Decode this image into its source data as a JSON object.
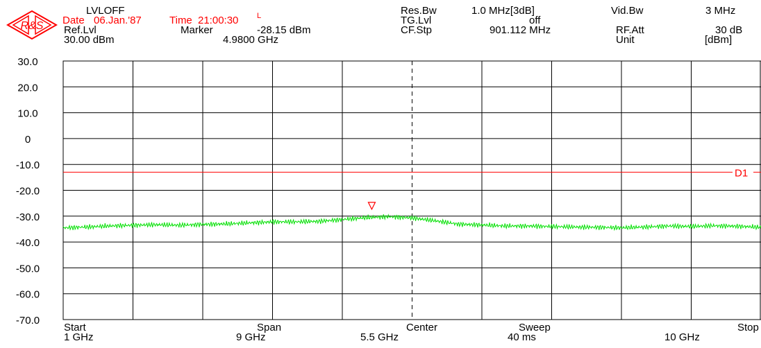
{
  "header": {
    "title": "LVLOFF",
    "date_label": "Date",
    "date_value": "06.Jan.'87",
    "time_label": "Time",
    "time_value": "21:00:30",
    "time_flag": "L",
    "ref_lvl_label": "Ref.Lvl",
    "ref_lvl_value": "30.00 dBm",
    "marker_label": "Marker",
    "marker_level": "-28.15 dBm",
    "marker_freq": "4.9800 GHz",
    "res_bw_label": "Res.Bw",
    "res_bw_value": "1.0 MHz[3dB]",
    "tg_lvl_label": "TG.Lvl",
    "tg_lvl_value": "off",
    "cf_stp_label": "CF.Stp",
    "cf_stp_value": "901.112 MHz",
    "vid_bw_label": "Vid.Bw",
    "vid_bw_value": "3 MHz",
    "rf_att_label": "RF.Att",
    "rf_att_value": "30 dB",
    "unit_label": "Unit",
    "unit_value": "[dBm]"
  },
  "footer": {
    "start_label": "Start",
    "start_value": "1 GHz",
    "span_label": "Span",
    "span_value": "9 GHz",
    "center_label": "Center",
    "center_value": "5.5 GHz",
    "sweep_label": "Sweep",
    "sweep_value": "40 ms",
    "stop_label": "Stop",
    "stop_value": "10 GHz"
  },
  "colors": {
    "trace": "#00e000",
    "display_line": "#ff0000",
    "marker": "#ff0000",
    "grid": "#000000",
    "text": "#000000",
    "accent_text": "#ff0000"
  },
  "chart_data": {
    "type": "line",
    "title": "LVLOFF",
    "x_unit": "GHz",
    "xlim": [
      1,
      10
    ],
    "ylim": [
      -70,
      30
    ],
    "y_ticks": [
      30,
      20,
      10,
      0,
      -10,
      -20,
      -30,
      -40,
      -50,
      -60,
      -70
    ],
    "y_tick_labels": [
      "30.0",
      "20.0",
      "10.0",
      "0",
      "-10.0",
      "-20.0",
      "-30.0",
      "-40.0",
      "-50.0",
      "-60.0",
      "-70.0"
    ],
    "grid": true,
    "center_freq": 5.5,
    "series": [
      {
        "color": "#00e000",
        "x": [
          1.0,
          1.3,
          1.6,
          1.9,
          2.2,
          2.5,
          2.8,
          3.1,
          3.4,
          3.7,
          4.0,
          4.3,
          4.6,
          4.9,
          5.2,
          5.5,
          5.8,
          6.1,
          6.4,
          6.7,
          7.0,
          7.3,
          7.6,
          7.9,
          8.2,
          8.5,
          8.8,
          9.1,
          9.4,
          9.7,
          10.0
        ],
        "y": [
          -34.5,
          -34.2,
          -33.8,
          -33.5,
          -33.3,
          -33.5,
          -33.2,
          -33.0,
          -32.6,
          -32.2,
          -32.2,
          -32.0,
          -31.3,
          -30.6,
          -30.2,
          -30.7,
          -31.8,
          -33.1,
          -33.4,
          -33.8,
          -33.8,
          -34.0,
          -34.2,
          -34.3,
          -34.5,
          -34.2,
          -33.8,
          -34.0,
          -33.7,
          -33.9,
          -34.3
        ]
      }
    ],
    "display_line": {
      "name": "D1",
      "level": -13
    },
    "marker": {
      "x": 4.98,
      "y": -28.15
    }
  }
}
